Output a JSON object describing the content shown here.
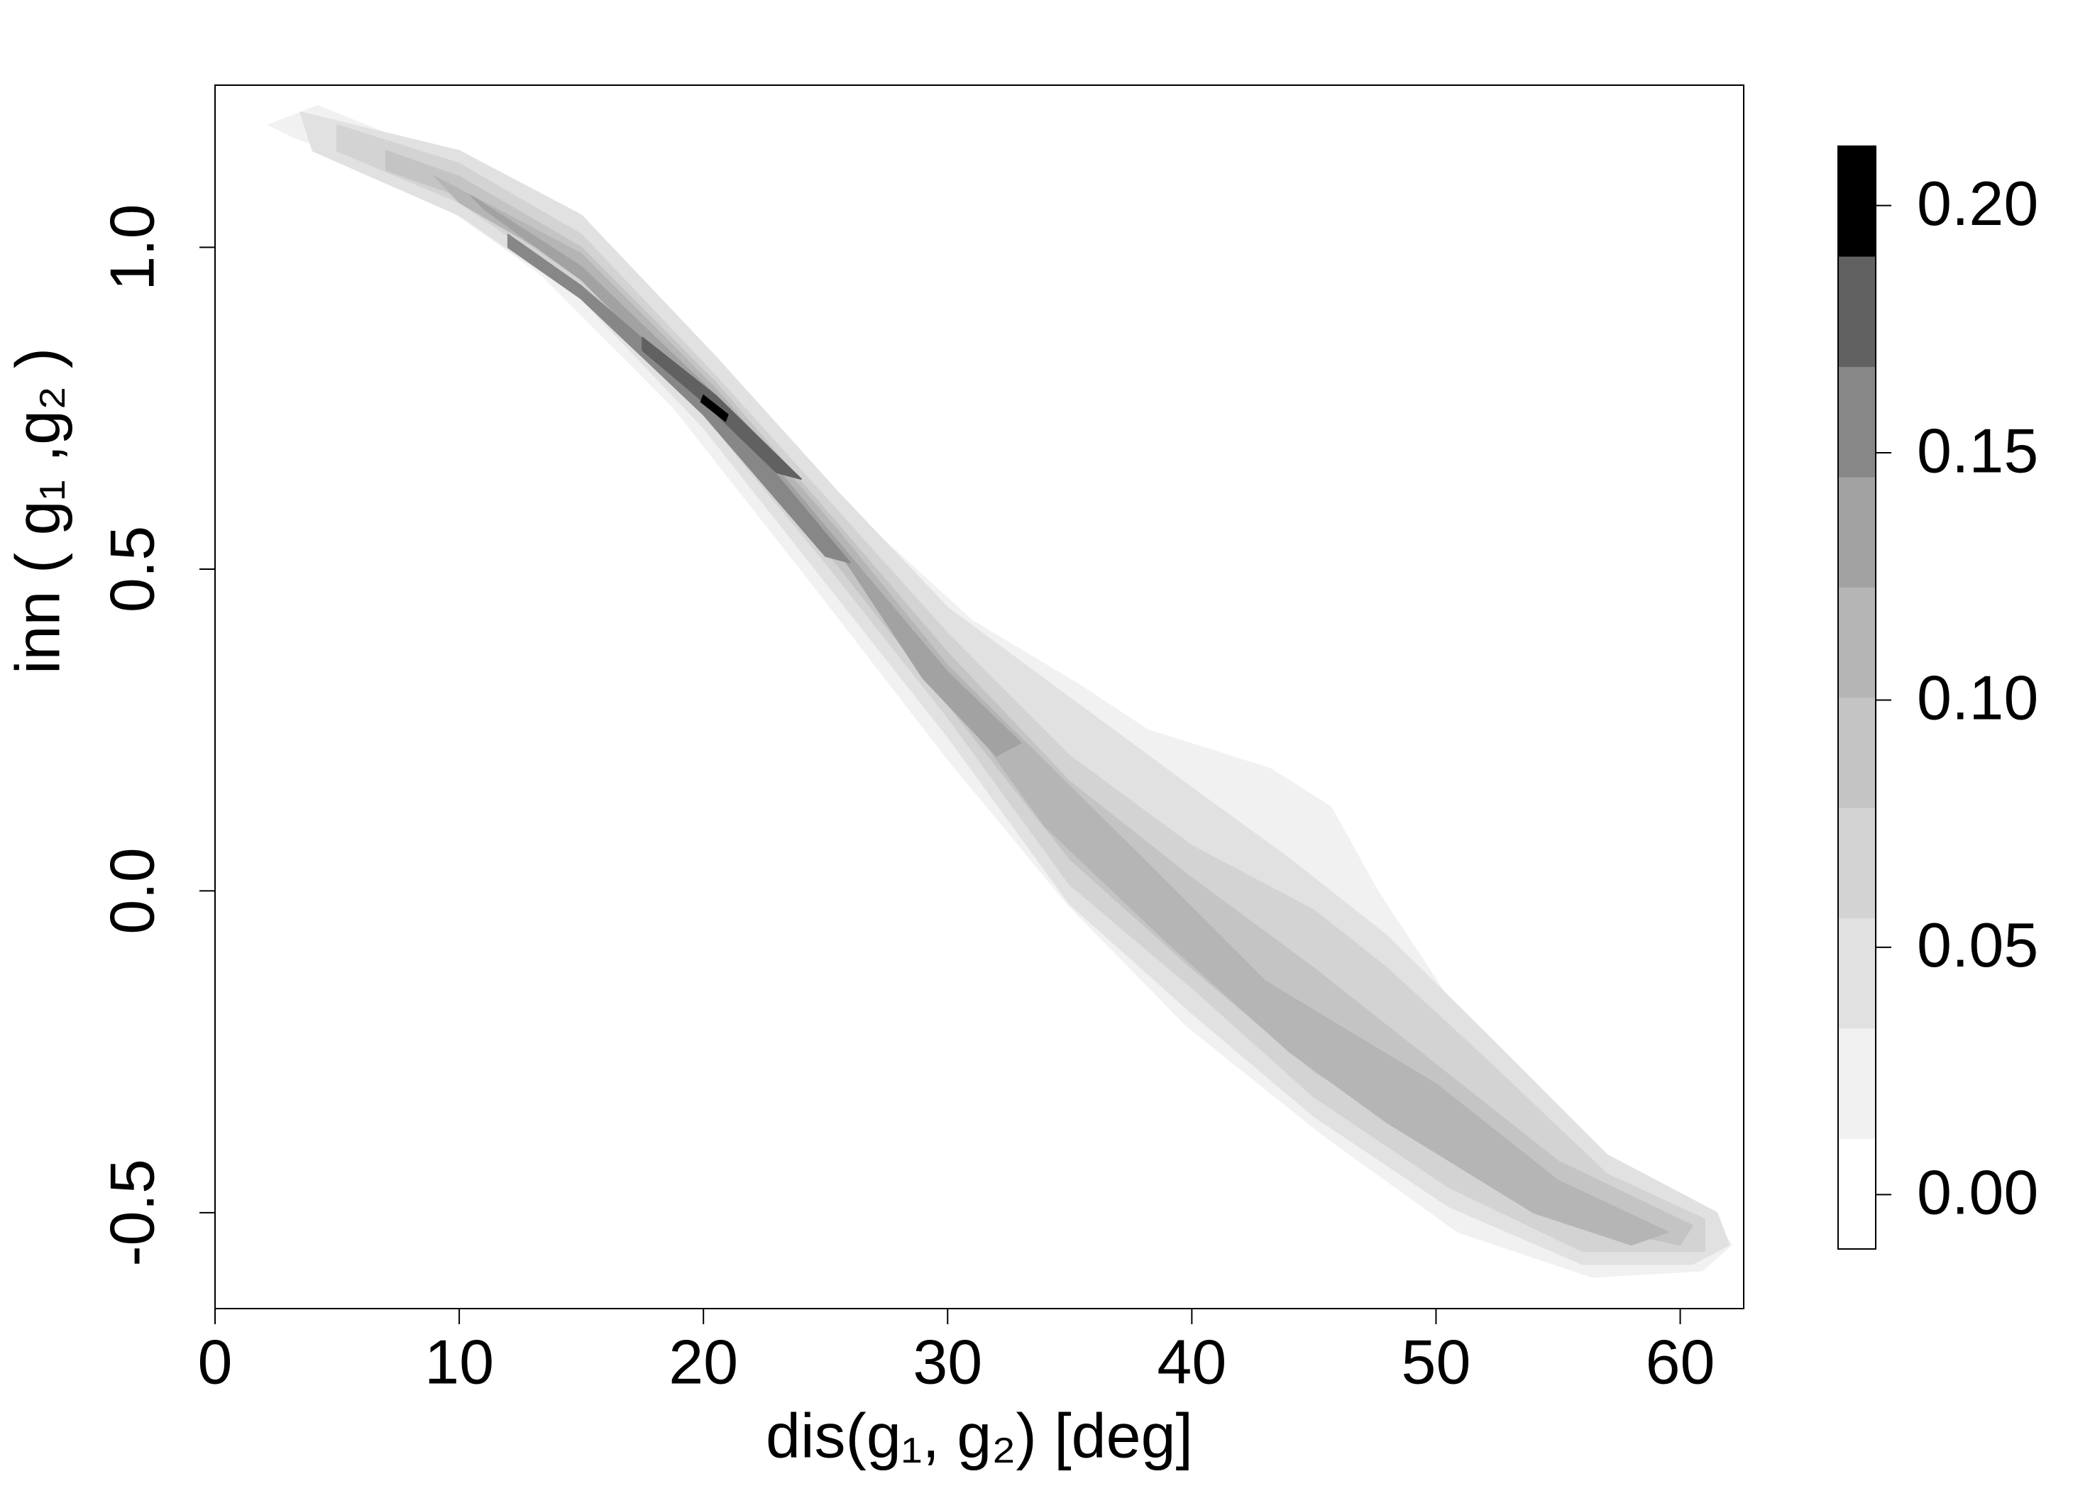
{
  "chart_data": {
    "type": "contour",
    "xlabel": "dis(g₁, g₂) [deg]",
    "ylabel": "inn ( g₁ ,g₂ )",
    "xlim": [
      0,
      62.6
    ],
    "ylim": [
      -0.649,
      1.252
    ],
    "xticks": [
      0,
      10,
      20,
      30,
      40,
      50,
      60
    ],
    "yticks": [
      -0.5,
      {
        "value": 0,
        "label": "0.0"
      },
      0.5,
      {
        "value": 1,
        "label": "1.0"
      }
    ],
    "colorbar": {
      "levels": [
        -0.011,
        0.0113,
        0.0336,
        0.0559,
        0.0782,
        0.1005,
        0.1228,
        0.1451,
        0.1674,
        0.1897,
        0.212
      ],
      "colors": [
        "#ffffff",
        "#f1f1f1",
        "#e1e1e1",
        "#d3d3d3",
        "#c4c4c4",
        "#b5b5b5",
        "#a2a2a2",
        "#878787",
        "#616161",
        "#000000"
      ],
      "ticks": [
        {
          "value": 0,
          "label": "0.00"
        },
        {
          "value": 0.05,
          "label": "0.05"
        },
        {
          "value": 0.1,
          "label": "0.10"
        },
        {
          "value": 0.15,
          "label": "0.15"
        },
        {
          "value": 0.2,
          "label": "0.20"
        }
      ]
    },
    "regions": [
      {
        "level": 0.0113,
        "x": [
          2.2,
          4.2,
          9.4,
          14.4,
          19.9,
          25.5,
          31.0,
          35.4,
          38.2,
          43.2,
          45.7,
          47.6,
          50.9,
          54.8,
          59.2,
          61.4,
          62.1,
          60.9,
          56.4,
          50.9,
          45.4,
          39.8,
          34.9,
          29.9,
          24.4,
          18.8,
          13.3,
          7.7,
          3.3
        ],
        "y": [
          1.19,
          1.22,
          1.14,
          1.04,
          0.84,
          0.61,
          0.42,
          0.32,
          0.25,
          0.19,
          0.13,
          0.0,
          -0.19,
          -0.36,
          -0.46,
          -0.51,
          -0.55,
          -0.59,
          -0.6,
          -0.53,
          -0.38,
          -0.21,
          -0.02,
          0.21,
          0.48,
          0.75,
          0.96,
          1.11,
          1.17
        ]
      },
      {
        "level": 0.0336,
        "x": [
          3.5,
          10,
          15,
          20.5,
          25.5,
          30,
          35,
          40,
          44,
          48,
          52,
          57,
          61.5,
          62,
          60.5,
          56,
          50.5,
          45,
          40,
          35,
          30,
          25,
          20,
          15,
          10,
          4
        ],
        "y": [
          1.21,
          1.15,
          1.05,
          0.83,
          0.62,
          0.44,
          0.3,
          0.16,
          0.05,
          -0.07,
          -0.22,
          -0.41,
          -0.5,
          -0.55,
          -0.58,
          -0.58,
          -0.49,
          -0.35,
          -0.19,
          -0.02,
          0.24,
          0.48,
          0.72,
          0.92,
          1.05,
          1.15
        ]
      },
      {
        "level": 0.0559,
        "x": [
          5,
          10,
          15,
          20.5,
          25.5,
          30,
          35,
          40,
          45,
          48,
          52,
          57,
          61,
          61,
          56,
          50.5,
          45,
          40,
          35,
          30,
          25,
          20,
          15,
          10,
          5
        ],
        "y": [
          1.19,
          1.13,
          1.02,
          0.8,
          0.59,
          0.4,
          0.21,
          0.07,
          -0.03,
          -0.12,
          -0.26,
          -0.44,
          -0.51,
          -0.56,
          -0.56,
          -0.46,
          -0.32,
          -0.15,
          0.01,
          0.27,
          0.51,
          0.74,
          0.94,
          1.07,
          1.15
        ]
      },
      {
        "level": 0.0782,
        "x": [
          7,
          10,
          15,
          20.5,
          25.5,
          30,
          35,
          40,
          45,
          50,
          55,
          60.5,
          60,
          55,
          50,
          45,
          40,
          35,
          30,
          25,
          20,
          15,
          10,
          7
        ],
        "y": [
          1.15,
          1.11,
          1.0,
          0.79,
          0.57,
          0.37,
          0.17,
          0.02,
          -0.12,
          -0.27,
          -0.42,
          -0.52,
          -0.55,
          -0.51,
          -0.4,
          -0.28,
          -0.12,
          0.05,
          0.29,
          0.53,
          0.75,
          0.95,
          1.08,
          1.12
        ]
      },
      {
        "level": 0.1005,
        "x": [
          9,
          15,
          20.5,
          25.5,
          30,
          34,
          38,
          43,
          50,
          55,
          59.5,
          58,
          54,
          48,
          44,
          39,
          34,
          30,
          25,
          20,
          15,
          10
        ],
        "y": [
          1.11,
          0.99,
          0.78,
          0.56,
          0.35,
          0.2,
          0.05,
          -0.14,
          -0.3,
          -0.45,
          -0.53,
          -0.55,
          -0.5,
          -0.36,
          -0.25,
          -0.08,
          0.1,
          0.31,
          0.55,
          0.76,
          0.96,
          1.07
        ]
      },
      {
        "level": 0.1228,
        "x": [
          10.5,
          15,
          20.5,
          26,
          30,
          33,
          32,
          29,
          25,
          20,
          15,
          11
        ],
        "y": [
          1.08,
          0.97,
          0.77,
          0.52,
          0.34,
          0.23,
          0.21,
          0.33,
          0.56,
          0.76,
          0.95,
          1.06
        ]
      },
      {
        "level": 0.1451,
        "x": [
          12,
          15,
          20.5,
          26,
          25,
          20,
          15,
          12
        ],
        "y": [
          1.02,
          0.94,
          0.76,
          0.51,
          0.52,
          0.74,
          0.92,
          1.0
        ]
      },
      {
        "level": 0.1674,
        "x": [
          17.5,
          20.5,
          24,
          23,
          20,
          17.5
        ],
        "y": [
          0.86,
          0.77,
          0.64,
          0.65,
          0.76,
          0.84
        ]
      },
      {
        "level": 0.1897,
        "x": [
          20,
          21,
          20.9,
          19.9
        ],
        "y": [
          0.77,
          0.74,
          0.73,
          0.76
        ]
      }
    ]
  }
}
